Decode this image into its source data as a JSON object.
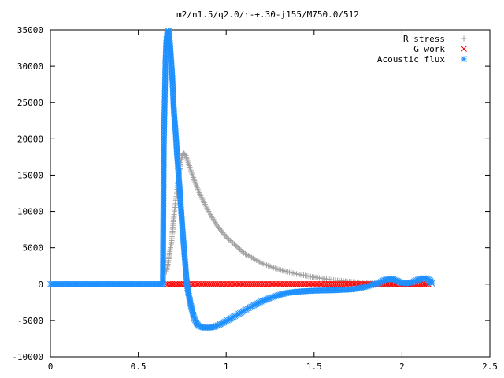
{
  "chart_data": {
    "type": "scatter",
    "title": "m2/n1.5/q2.0/r-+.30-j155/M750.0/512",
    "xlabel": "",
    "ylabel": "",
    "xlim": [
      0,
      2.5
    ],
    "ylim": [
      -10000,
      35000
    ],
    "xticks": [
      "0",
      "0.5",
      "1",
      "1.5",
      "2",
      "2.5"
    ],
    "yticks": [
      "-10000",
      "-5000",
      "0",
      "5000",
      "10000",
      "15000",
      "20000",
      "25000",
      "30000",
      "35000"
    ],
    "grid": false,
    "legend_position": "top-right",
    "series": [
      {
        "name": "R stress",
        "marker": "+",
        "color": "#a0a0a0",
        "points": [
          [
            0.66,
            1700
          ],
          [
            0.67,
            3000
          ],
          [
            0.68,
            4500
          ],
          [
            0.69,
            6000
          ],
          [
            0.695,
            7300
          ],
          [
            0.7,
            8600
          ],
          [
            0.705,
            9800
          ],
          [
            0.71,
            10800
          ],
          [
            0.715,
            11800
          ],
          [
            0.72,
            12800
          ],
          [
            0.725,
            13800
          ],
          [
            0.73,
            14800
          ],
          [
            0.735,
            15700
          ],
          [
            0.74,
            16500
          ],
          [
            0.745,
            17200
          ],
          [
            0.75,
            17700
          ],
          [
            0.755,
            18000
          ],
          [
            0.76,
            18000
          ],
          [
            0.77,
            17700
          ],
          [
            0.78,
            17000
          ],
          [
            0.8,
            15600
          ],
          [
            0.82,
            14200
          ],
          [
            0.85,
            12400
          ],
          [
            0.9,
            10000
          ],
          [
            0.95,
            8000
          ],
          [
            1.0,
            6500
          ],
          [
            1.1,
            4300
          ],
          [
            1.2,
            2900
          ],
          [
            1.3,
            2000
          ],
          [
            1.4,
            1400
          ],
          [
            1.5,
            950
          ],
          [
            1.6,
            600
          ],
          [
            1.7,
            350
          ],
          [
            1.8,
            150
          ],
          [
            1.9,
            50
          ],
          [
            2.0,
            0
          ],
          [
            2.1,
            0
          ],
          [
            2.16,
            0
          ]
        ]
      },
      {
        "name": "G work",
        "marker": "x",
        "color": "#ff0000",
        "points": [
          [
            0.66,
            0
          ],
          [
            0.75,
            0
          ],
          [
            0.85,
            0
          ],
          [
            0.95,
            0
          ],
          [
            1.05,
            0
          ],
          [
            1.15,
            0
          ],
          [
            1.25,
            0
          ],
          [
            1.35,
            0
          ],
          [
            1.45,
            0
          ],
          [
            1.55,
            0
          ],
          [
            1.65,
            0
          ],
          [
            1.75,
            0
          ],
          [
            1.85,
            0
          ],
          [
            1.95,
            0
          ],
          [
            2.05,
            0
          ],
          [
            2.15,
            0
          ]
        ]
      },
      {
        "name": "Acoustic flux",
        "marker": "*",
        "color": "#1e90ff",
        "points": [
          [
            0.0,
            0
          ],
          [
            0.1,
            0
          ],
          [
            0.2,
            0
          ],
          [
            0.3,
            0
          ],
          [
            0.4,
            0
          ],
          [
            0.5,
            0
          ],
          [
            0.6,
            0
          ],
          [
            0.64,
            0
          ],
          [
            0.645,
            19000
          ],
          [
            0.655,
            30700
          ],
          [
            0.66,
            33600
          ],
          [
            0.665,
            34500
          ],
          [
            0.67,
            34900
          ],
          [
            0.675,
            34700
          ],
          [
            0.68,
            33200
          ],
          [
            0.685,
            31500
          ],
          [
            0.69,
            29800
          ],
          [
            0.695,
            27800
          ],
          [
            0.7,
            25000
          ],
          [
            0.705,
            23000
          ],
          [
            0.71,
            21700
          ],
          [
            0.715,
            20000
          ],
          [
            0.72,
            18000
          ],
          [
            0.725,
            16500
          ],
          [
            0.73,
            14800
          ],
          [
            0.735,
            13300
          ],
          [
            0.74,
            11500
          ],
          [
            0.745,
            9800
          ],
          [
            0.75,
            8000
          ],
          [
            0.755,
            6500
          ],
          [
            0.76,
            5000
          ],
          [
            0.765,
            3500
          ],
          [
            0.77,
            2000
          ],
          [
            0.775,
            500
          ],
          [
            0.78,
            -500
          ],
          [
            0.79,
            -1800
          ],
          [
            0.8,
            -3000
          ],
          [
            0.81,
            -4000
          ],
          [
            0.82,
            -4800
          ],
          [
            0.83,
            -5300
          ],
          [
            0.84,
            -5700
          ],
          [
            0.86,
            -5900
          ],
          [
            0.88,
            -6000
          ],
          [
            0.9,
            -6000
          ],
          [
            0.93,
            -5900
          ],
          [
            0.96,
            -5600
          ],
          [
            1.0,
            -5100
          ],
          [
            1.05,
            -4400
          ],
          [
            1.1,
            -3700
          ],
          [
            1.15,
            -3000
          ],
          [
            1.2,
            -2400
          ],
          [
            1.25,
            -1900
          ],
          [
            1.3,
            -1500
          ],
          [
            1.35,
            -1200
          ],
          [
            1.4,
            -1050
          ],
          [
            1.5,
            -900
          ],
          [
            1.6,
            -850
          ],
          [
            1.7,
            -750
          ],
          [
            1.75,
            -600
          ],
          [
            1.8,
            -300
          ],
          [
            1.85,
            0
          ],
          [
            1.88,
            300
          ],
          [
            1.9,
            550
          ],
          [
            1.93,
            700
          ],
          [
            1.95,
            650
          ],
          [
            1.98,
            400
          ],
          [
            2.0,
            150
          ],
          [
            2.03,
            100
          ],
          [
            2.06,
            300
          ],
          [
            2.09,
            600
          ],
          [
            2.12,
            800
          ],
          [
            2.14,
            800
          ],
          [
            2.16,
            500
          ],
          [
            2.17,
            100
          ]
        ]
      }
    ]
  }
}
